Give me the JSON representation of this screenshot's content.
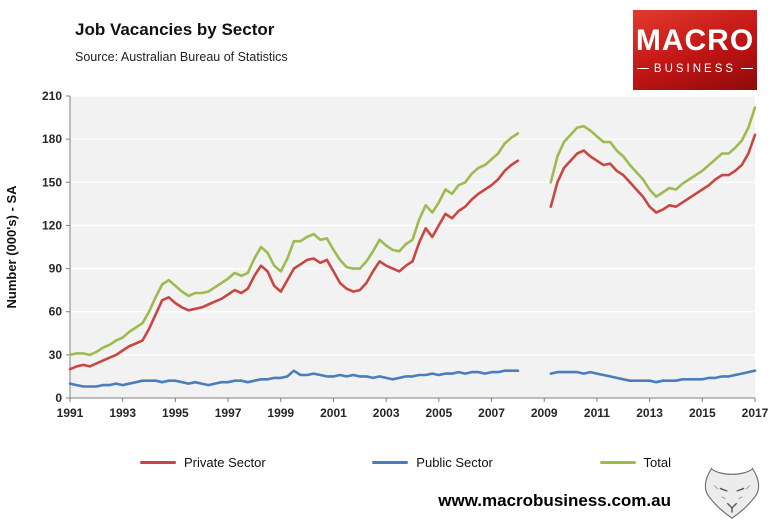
{
  "header": {
    "title": "Job Vacancies by Sector",
    "subtitle": "Source: Australian Bureau of Statistics"
  },
  "logo": {
    "line1": "MACRO",
    "line2": "BUSINESS",
    "bg_color": "#c01414"
  },
  "footer": {
    "website": "www.macrobusiness.com.au"
  },
  "chart_data": {
    "type": "line",
    "title": "Job Vacancies by Sector",
    "subtitle": "Source: Australian Bureau of Statistics",
    "xlabel": "",
    "ylabel": "Number (000's) - SA",
    "xlim": [
      1991,
      2017
    ],
    "ylim": [
      0,
      210
    ],
    "yticks": [
      0,
      30,
      60,
      90,
      120,
      150,
      180,
      210
    ],
    "xticks": [
      1991,
      1993,
      1995,
      1997,
      1999,
      2001,
      2003,
      2005,
      2007,
      2009,
      2011,
      2013,
      2015,
      2017
    ],
    "grid": true,
    "plot_bg": "#f2f2f2",
    "gridline_color": "#ffffff",
    "axis_color": "#7f7f7f",
    "legend_position": "bottom",
    "x_seg1": [
      1991,
      1991.25,
      1991.5,
      1991.75,
      1992,
      1992.25,
      1992.5,
      1992.75,
      1993,
      1993.25,
      1993.5,
      1993.75,
      1994,
      1994.25,
      1994.5,
      1994.75,
      1995,
      1995.25,
      1995.5,
      1995.75,
      1996,
      1996.25,
      1996.5,
      1996.75,
      1997,
      1997.25,
      1997.5,
      1997.75,
      1998,
      1998.25,
      1998.5,
      1998.75,
      1999,
      1999.25,
      1999.5,
      1999.75,
      2000,
      2000.25,
      2000.5,
      2000.75,
      2001,
      2001.25,
      2001.5,
      2001.75,
      2002,
      2002.25,
      2002.5,
      2002.75,
      2003,
      2003.25,
      2003.5,
      2003.75,
      2004,
      2004.25,
      2004.5,
      2004.75,
      2005,
      2005.25,
      2005.5,
      2005.75,
      2006,
      2006.25,
      2006.5,
      2006.75,
      2007,
      2007.25,
      2007.5,
      2007.75,
      2008
    ],
    "x_seg2": [
      2009.25,
      2009.5,
      2009.75,
      2010,
      2010.25,
      2010.5,
      2010.75,
      2011,
      2011.25,
      2011.5,
      2011.75,
      2012,
      2012.25,
      2012.5,
      2012.75,
      2013,
      2013.25,
      2013.5,
      2013.75,
      2014,
      2014.25,
      2014.5,
      2014.75,
      2015,
      2015.25,
      2015.5,
      2015.75,
      2016,
      2016.25,
      2016.5,
      2016.75,
      2017
    ],
    "series": [
      {
        "name": "Private Sector",
        "color": "#c84741",
        "y_seg1": [
          20,
          22,
          23,
          22,
          24,
          26,
          28,
          30,
          33,
          36,
          38,
          40,
          48,
          58,
          68,
          70,
          66,
          63,
          61,
          62,
          63,
          65,
          67,
          69,
          72,
          75,
          73,
          76,
          85,
          92,
          88,
          78,
          74,
          82,
          90,
          93,
          96,
          97,
          94,
          96,
          88,
          80,
          76,
          74,
          75,
          80,
          88,
          95,
          92,
          90,
          88,
          92,
          95,
          108,
          118,
          112,
          120,
          128,
          125,
          130,
          133,
          138,
          142,
          145,
          148,
          152,
          158,
          162,
          165
        ],
        "y_seg2": [
          133,
          150,
          160,
          165,
          170,
          172,
          168,
          165,
          162,
          163,
          158,
          155,
          150,
          145,
          140,
          133,
          129,
          131,
          134,
          133,
          136,
          139,
          142,
          145,
          148,
          152,
          155,
          155,
          158,
          162,
          170,
          183
        ]
      },
      {
        "name": "Public Sector",
        "color": "#4a7ebb",
        "y_seg1": [
          10,
          9,
          8,
          8,
          8,
          9,
          9,
          10,
          9,
          10,
          11,
          12,
          12,
          12,
          11,
          12,
          12,
          11,
          10,
          11,
          10,
          9,
          10,
          11,
          11,
          12,
          12,
          11,
          12,
          13,
          13,
          14,
          14,
          15,
          19,
          16,
          16,
          17,
          16,
          15,
          15,
          16,
          15,
          16,
          15,
          15,
          14,
          15,
          14,
          13,
          14,
          15,
          15,
          16,
          16,
          17,
          16,
          17,
          17,
          18,
          17,
          18,
          18,
          17,
          18,
          18,
          19,
          19,
          19
        ],
        "y_seg2": [
          17,
          18,
          18,
          18,
          18,
          17,
          18,
          17,
          16,
          15,
          14,
          13,
          12,
          12,
          12,
          12,
          11,
          12,
          12,
          12,
          13,
          13,
          13,
          13,
          14,
          14,
          15,
          15,
          16,
          17,
          18,
          19
        ]
      },
      {
        "name": "Total",
        "color": "#9dbb4f",
        "y_seg1": [
          30,
          31,
          31,
          30,
          32,
          35,
          37,
          40,
          42,
          46,
          49,
          52,
          60,
          70,
          79,
          82,
          78,
          74,
          71,
          73,
          73,
          74,
          77,
          80,
          83,
          87,
          85,
          87,
          97,
          105,
          101,
          92,
          88,
          97,
          109,
          109,
          112,
          114,
          110,
          111,
          103,
          96,
          91,
          90,
          90,
          95,
          102,
          110,
          106,
          103,
          102,
          107,
          110,
          124,
          134,
          129,
          136,
          145,
          142,
          148,
          150,
          156,
          160,
          162,
          166,
          170,
          177,
          181,
          184
        ],
        "y_seg2": [
          150,
          168,
          178,
          183,
          188,
          189,
          186,
          182,
          178,
          178,
          172,
          168,
          162,
          157,
          152,
          145,
          140,
          143,
          146,
          145,
          149,
          152,
          155,
          158,
          162,
          166,
          170,
          170,
          174,
          179,
          188,
          202
        ]
      }
    ]
  }
}
